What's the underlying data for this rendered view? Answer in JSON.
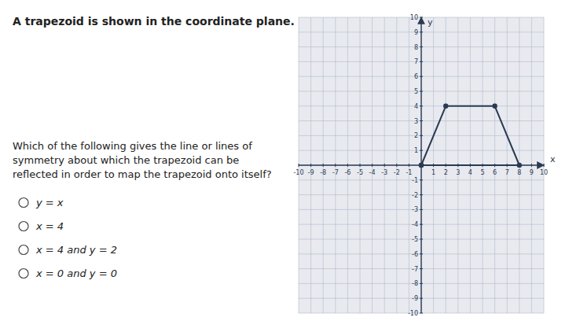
{
  "chart_data": {
    "type": "line",
    "title": "A trapezoid is shown in the coordinate plane.",
    "annotations": [
      "Which of the following gives the line or lines of symmetry about which the trapezoid can be reflected in order to map the trapezoid onto itself?",
      "y = x",
      "x = 4",
      "x = 4 and y = 2",
      "x = 0 and y = 0"
    ],
    "x_label": "x",
    "y_label": "y",
    "x": [
      0,
      2,
      6,
      8,
      0
    ],
    "values": [
      0,
      4,
      4,
      0,
      0
    ],
    "color": "#2b3a52",
    "marker": "circle",
    "xlim": [
      -10,
      10
    ],
    "ylim": [
      -10,
      10
    ],
    "xticks": [
      -10,
      -9,
      -8,
      -7,
      -6,
      -5,
      -4,
      -3,
      -2,
      -1,
      {
        "value": 0,
        "label": null
      },
      1,
      2,
      3,
      4,
      5,
      6,
      7,
      8,
      9,
      10
    ],
    "yticks": [
      -10,
      -9,
      -8,
      -7,
      -6,
      -5,
      -4,
      -3,
      -2,
      -1,
      {
        "value": 0,
        "label": null
      },
      1,
      2,
      3,
      4,
      5,
      6,
      7,
      8,
      9,
      10
    ],
    "grid": true
  }
}
